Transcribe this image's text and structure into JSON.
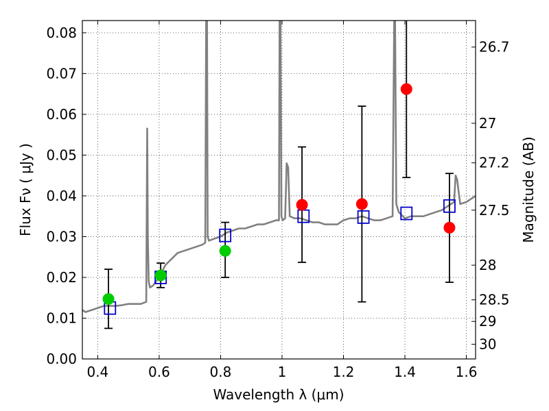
{
  "chart_data": {
    "type": "scatter",
    "title": "",
    "xlabel": "Wavelength  λ (μm)",
    "ylabel": "Flux  Fν  ( μJy )",
    "ylabel_right": "Magnitude (AB)",
    "xlim": [
      0.35,
      1.63
    ],
    "ylim": [
      0.0,
      0.083
    ],
    "grid": true,
    "x_ticks": [
      0.4,
      0.6,
      0.8,
      1.0,
      1.2,
      1.4,
      1.6
    ],
    "x_tick_labels": [
      "0.4",
      "0.6",
      "0.8",
      "1",
      "1.2",
      "1.4",
      "1.6"
    ],
    "y_ticks": [
      0.0,
      0.01,
      0.02,
      0.03,
      0.04,
      0.05,
      0.06,
      0.07,
      0.08
    ],
    "y_tick_labels": [
      "0.00",
      "0.01",
      "0.02",
      "0.03",
      "0.04",
      "0.05",
      "0.06",
      "0.07",
      "0.08"
    ],
    "right_ticks": [
      {
        "label": "26.7",
        "flux": 0.0765
      },
      {
        "label": "27",
        "flux": 0.0578
      },
      {
        "label": "27.2",
        "flux": 0.0481
      },
      {
        "label": "27.5",
        "flux": 0.0365
      },
      {
        "label": "28",
        "flux": 0.023
      },
      {
        "label": "28.5",
        "flux": 0.0145
      },
      {
        "label": "29",
        "flux": 0.0092
      },
      {
        "label": "30",
        "flux": 0.0036
      }
    ],
    "colors": {
      "model": "#808080",
      "model_points": "#0000cc",
      "green_points": "#00cc00",
      "red_points": "#ff0000",
      "errorbar": "#000000",
      "axis": "#000000"
    },
    "series": [
      {
        "type": "line",
        "color": "#808080",
        "x": [
          0.35,
          0.36,
          0.38,
          0.4,
          0.42,
          0.44,
          0.46,
          0.48,
          0.5,
          0.52,
          0.54,
          0.558,
          0.561,
          0.563,
          0.566,
          0.57,
          0.58,
          0.59,
          0.6,
          0.62,
          0.64,
          0.66,
          0.68,
          0.7,
          0.72,
          0.74,
          0.75,
          0.753,
          0.756,
          0.758,
          0.762,
          0.78,
          0.8,
          0.82,
          0.84,
          0.86,
          0.88,
          0.9,
          0.92,
          0.94,
          0.96,
          0.98,
          0.99,
          0.992,
          0.995,
          0.998,
          1.002,
          1.01,
          1.015,
          1.02,
          1.025,
          1.04,
          1.06,
          1.08,
          1.1,
          1.12,
          1.14,
          1.16,
          1.18,
          1.2,
          1.22,
          1.24,
          1.26,
          1.28,
          1.3,
          1.32,
          1.34,
          1.36,
          1.365,
          1.368,
          1.372,
          1.38,
          1.4,
          1.42,
          1.44,
          1.46,
          1.48,
          1.5,
          1.52,
          1.54,
          1.55,
          1.56,
          1.565,
          1.57,
          1.58,
          1.6,
          1.62,
          1.63
        ],
        "y": [
          0.012,
          0.0115,
          0.012,
          0.0125,
          0.013,
          0.013,
          0.013,
          0.0132,
          0.0135,
          0.0135,
          0.0135,
          0.014,
          0.0565,
          0.03,
          0.019,
          0.0175,
          0.018,
          0.019,
          0.02,
          0.023,
          0.0245,
          0.026,
          0.0265,
          0.027,
          0.0275,
          0.028,
          0.0285,
          0.083,
          0.083,
          0.03,
          0.029,
          0.0295,
          0.03,
          0.031,
          0.0315,
          0.032,
          0.032,
          0.0325,
          0.033,
          0.033,
          0.0335,
          0.034,
          0.034,
          0.083,
          0.083,
          0.035,
          0.034,
          0.0345,
          0.048,
          0.047,
          0.035,
          0.0345,
          0.0345,
          0.034,
          0.0335,
          0.0335,
          0.033,
          0.033,
          0.033,
          0.034,
          0.0345,
          0.0345,
          0.035,
          0.0345,
          0.034,
          0.034,
          0.0345,
          0.035,
          0.083,
          0.083,
          0.038,
          0.036,
          0.0345,
          0.035,
          0.035,
          0.035,
          0.0355,
          0.036,
          0.0365,
          0.0375,
          0.038,
          0.0385,
          0.045,
          0.044,
          0.038,
          0.0385,
          0.0395,
          0.04
        ]
      },
      {
        "type": "model-points",
        "marker": "open-square",
        "color": "#0000cc",
        "x": [
          0.44,
          0.605,
          0.815,
          1.07,
          1.265,
          1.405,
          1.545
        ],
        "y": [
          0.0125,
          0.02,
          0.0303,
          0.035,
          0.0348,
          0.0357,
          0.0375
        ]
      },
      {
        "type": "observed-points",
        "marker": "filled-circle",
        "color": "#00cc00",
        "x": [
          0.435,
          0.605,
          0.815
        ],
        "y": [
          0.0147,
          0.0205,
          0.0265
        ],
        "err_low": [
          0.0075,
          0.0175,
          0.02
        ],
        "err_high": [
          0.022,
          0.0235,
          0.0335
        ]
      },
      {
        "type": "observed-points",
        "marker": "filled-circle",
        "color": "#ff0000",
        "x": [
          1.065,
          1.26,
          1.405,
          1.545
        ],
        "y": [
          0.0378,
          0.038,
          0.0662,
          0.0322
        ],
        "err_low": [
          0.0237,
          0.014,
          0.0445,
          0.0188
        ],
        "err_high": [
          0.052,
          0.062,
          0.083,
          0.0455
        ]
      }
    ]
  }
}
